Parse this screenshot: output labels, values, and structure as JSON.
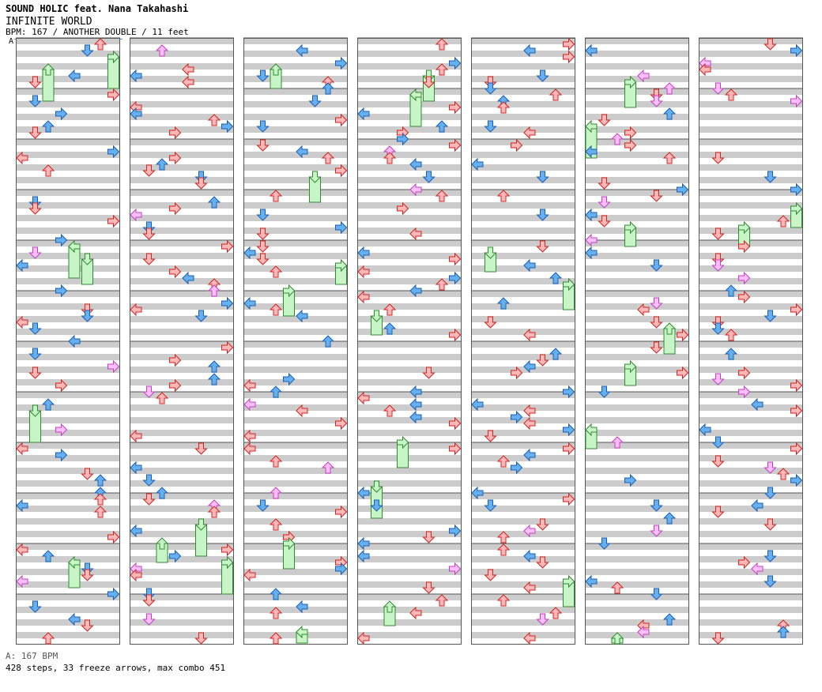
{
  "header": {
    "artist": "SOUND HOLIC feat. Nana Takahashi",
    "title": "INFINITE WORLD",
    "info": "BPM: 167 / ANOTHER DOUBLE / 11 feet"
  },
  "bpm_marker": "A",
  "footer": {
    "bpm_legend": "A: 167 BPM",
    "stats": "428 steps, 33 freeze arrows, max combo 451"
  },
  "colors": {
    "arrow_red_fill": "#ffb8b8",
    "arrow_red_stroke": "#d22222",
    "arrow_blue_fill": "#66b0f0",
    "arrow_blue_stroke": "#1c5fb0",
    "arrow_pink_fill": "#ffbfff",
    "arrow_pink_stroke": "#c040c0",
    "freeze_fill": "#c8f5c8",
    "freeze_stroke": "#2e8b2e",
    "stripe": "#cccccc",
    "bpm_line": "#3399ff"
  },
  "chart_data": {
    "type": "step-chart",
    "song": "INFINITE WORLD",
    "artist": "SOUND HOLIC feat. Nana Takahashi",
    "bpm": 167,
    "difficulty": "ANOTHER",
    "style": "DOUBLE",
    "feet": 11,
    "steps": 428,
    "freeze_arrows": 33,
    "max_combo": 451,
    "columns": 7,
    "measures_per_column": 12,
    "lanes": [
      "P1-left",
      "P1-down",
      "P1-up",
      "P1-right",
      "P2-left",
      "P2-down",
      "P2-up",
      "P2-right"
    ]
  }
}
